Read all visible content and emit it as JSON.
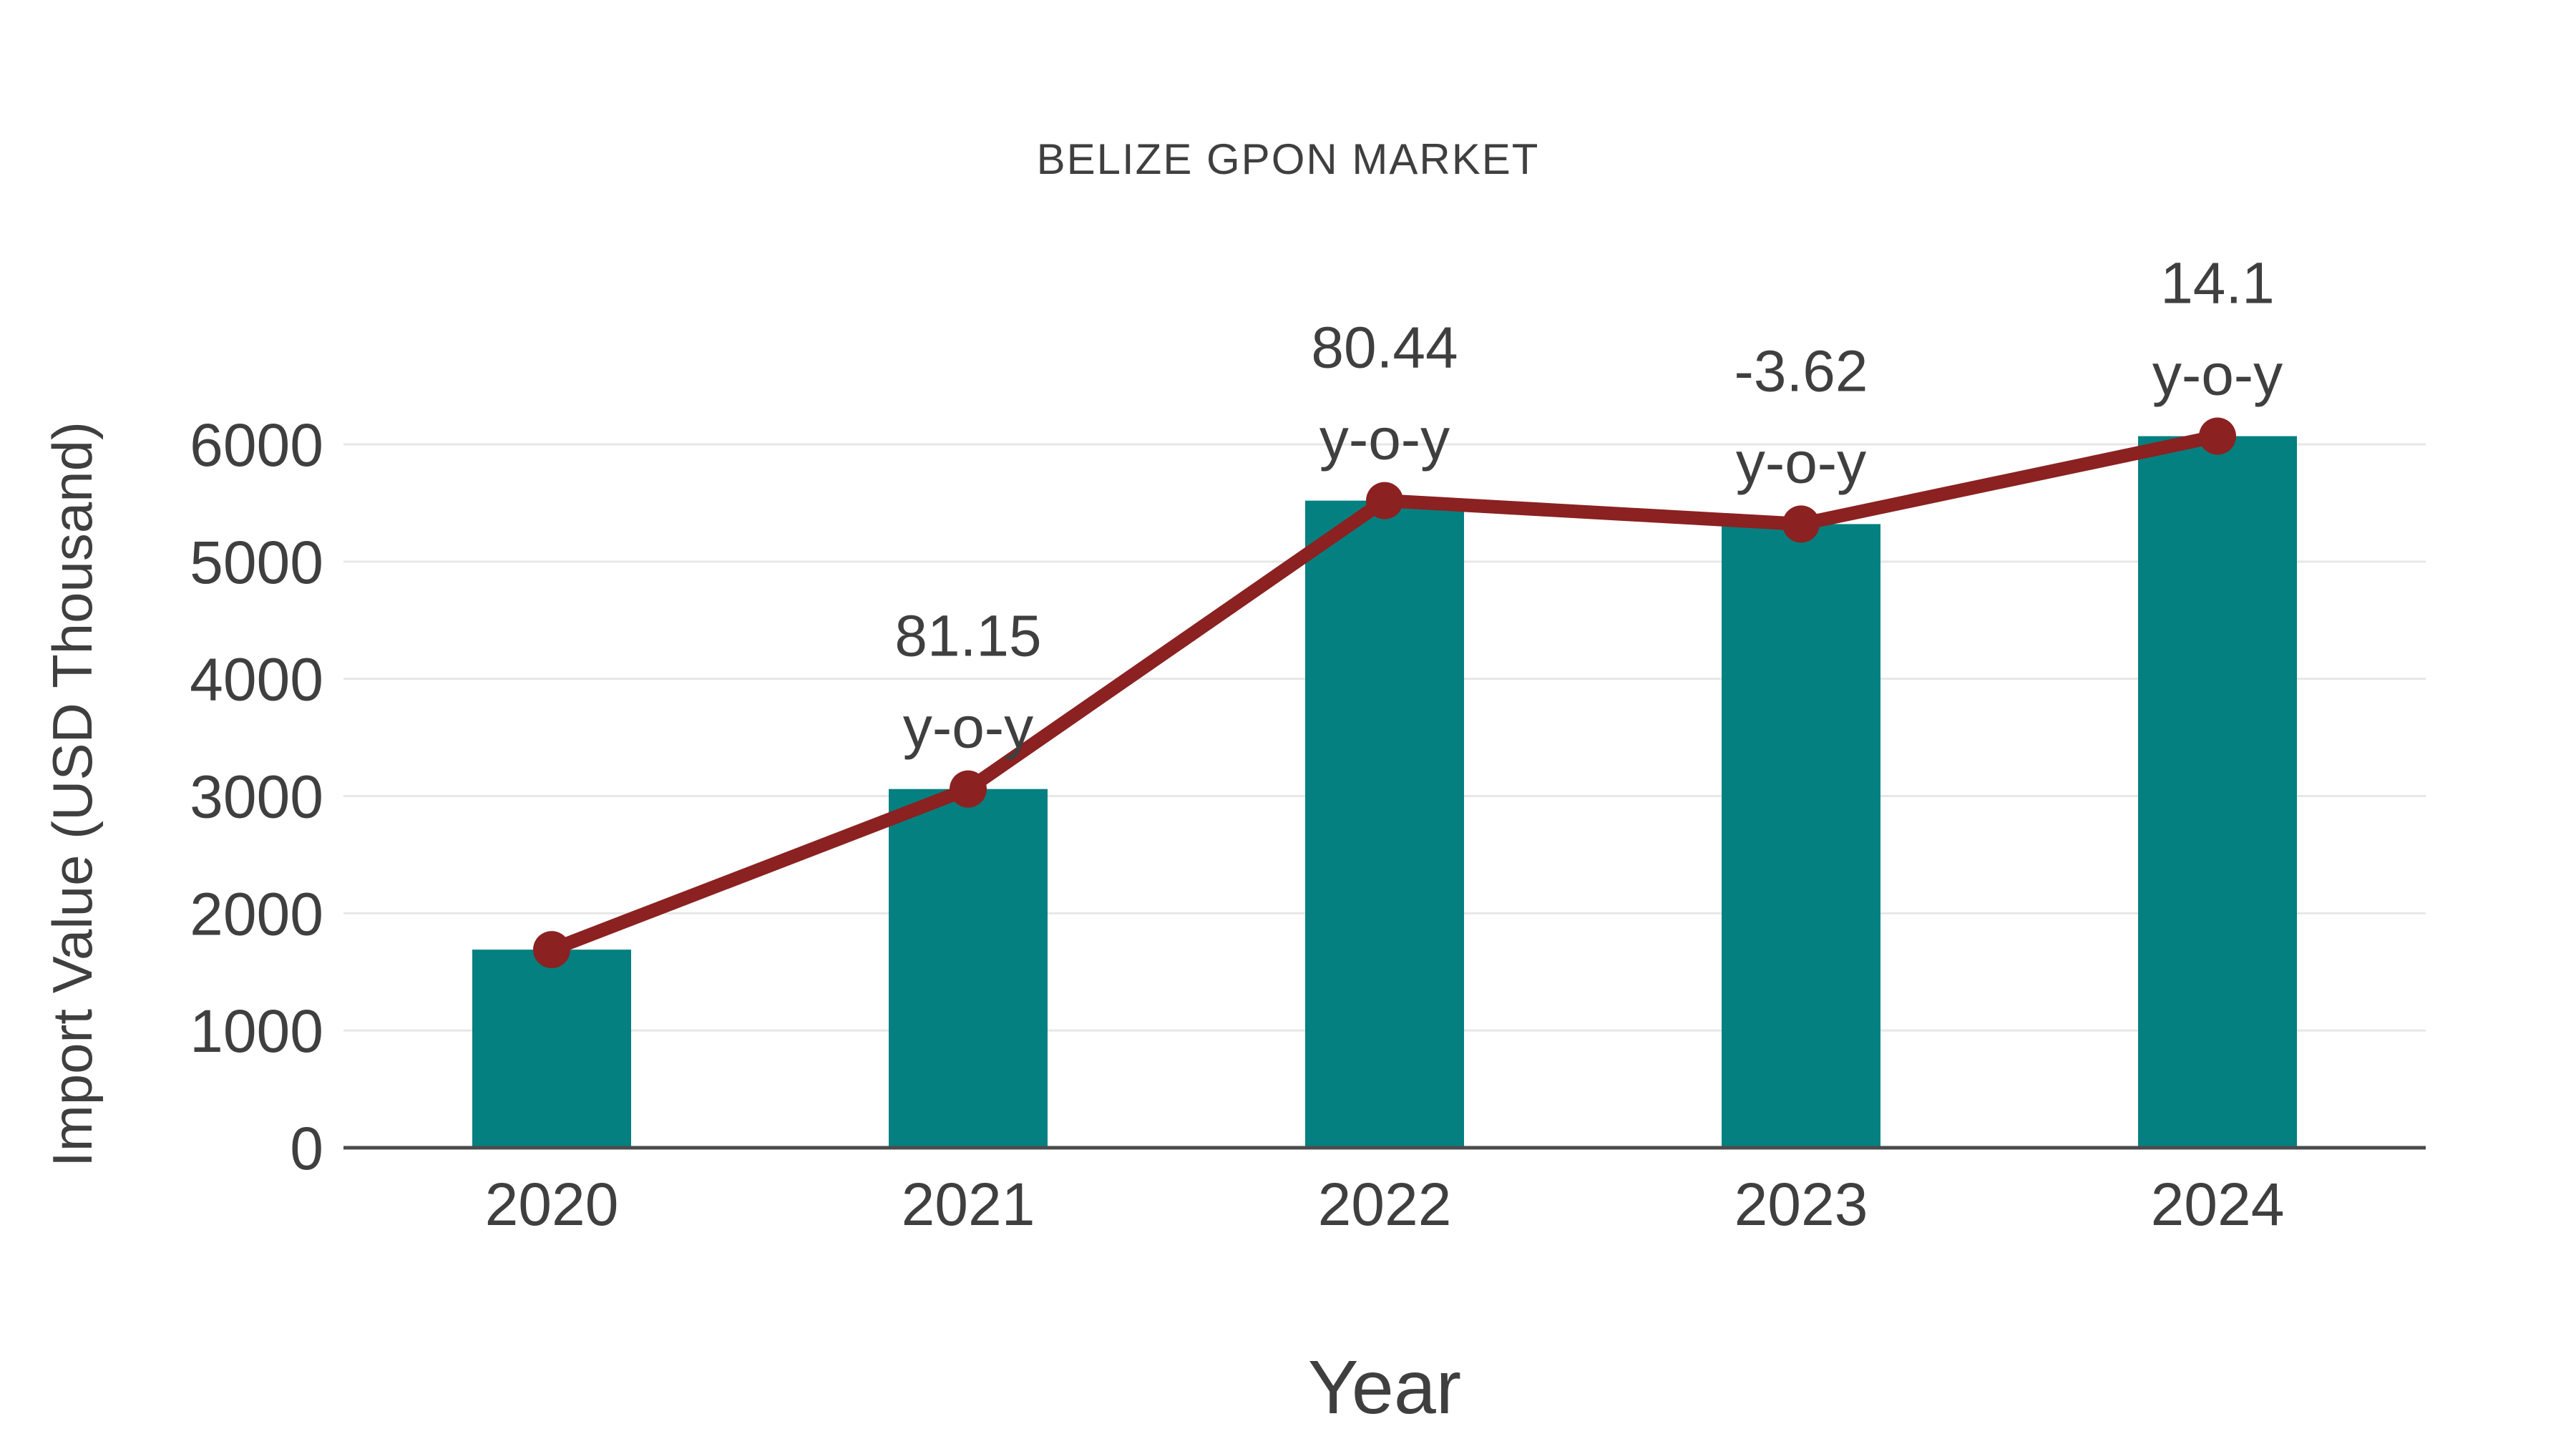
{
  "title": "BELIZE GPON MARKET",
  "axes": {
    "y_label": "Import Value (USD Thousand)",
    "x_label": "Year"
  },
  "colors": {
    "bar": "#058080",
    "line": "#8B2121",
    "text": "#3F3F3F",
    "grid": "#E7E7E7",
    "axis": "#4B4B4B",
    "background": "#FFFFFF"
  },
  "chart_data": {
    "type": "bar",
    "title": "BELIZE GPON MARKET",
    "xlabel": "Year",
    "ylabel": "Import Value (USD Thousand)",
    "categories": [
      "2020",
      "2021",
      "2022",
      "2023",
      "2024"
    ],
    "series": [
      {
        "name": "Import Value (USD Thousand)",
        "type": "bar",
        "values": [
          1690,
          3060,
          5520,
          5320,
          6070
        ]
      },
      {
        "name": "Import Value trend line",
        "type": "line",
        "values": [
          1690,
          3060,
          5520,
          5320,
          6070
        ]
      }
    ],
    "annotations": [
      {
        "category": "2021",
        "line1": "81.15",
        "line2": "y-o-y"
      },
      {
        "category": "2022",
        "line1": "80.44",
        "line2": "y-o-y"
      },
      {
        "category": "2023",
        "line1": "-3.62",
        "line2": "y-o-y"
      },
      {
        "category": "2024",
        "line1": "14.1",
        "line2": "y-o-y"
      }
    ],
    "ylim": [
      0,
      6000
    ],
    "yticks": [
      0,
      1000,
      2000,
      3000,
      4000,
      5000,
      6000
    ],
    "grid": "horizontal",
    "legend": "none"
  }
}
